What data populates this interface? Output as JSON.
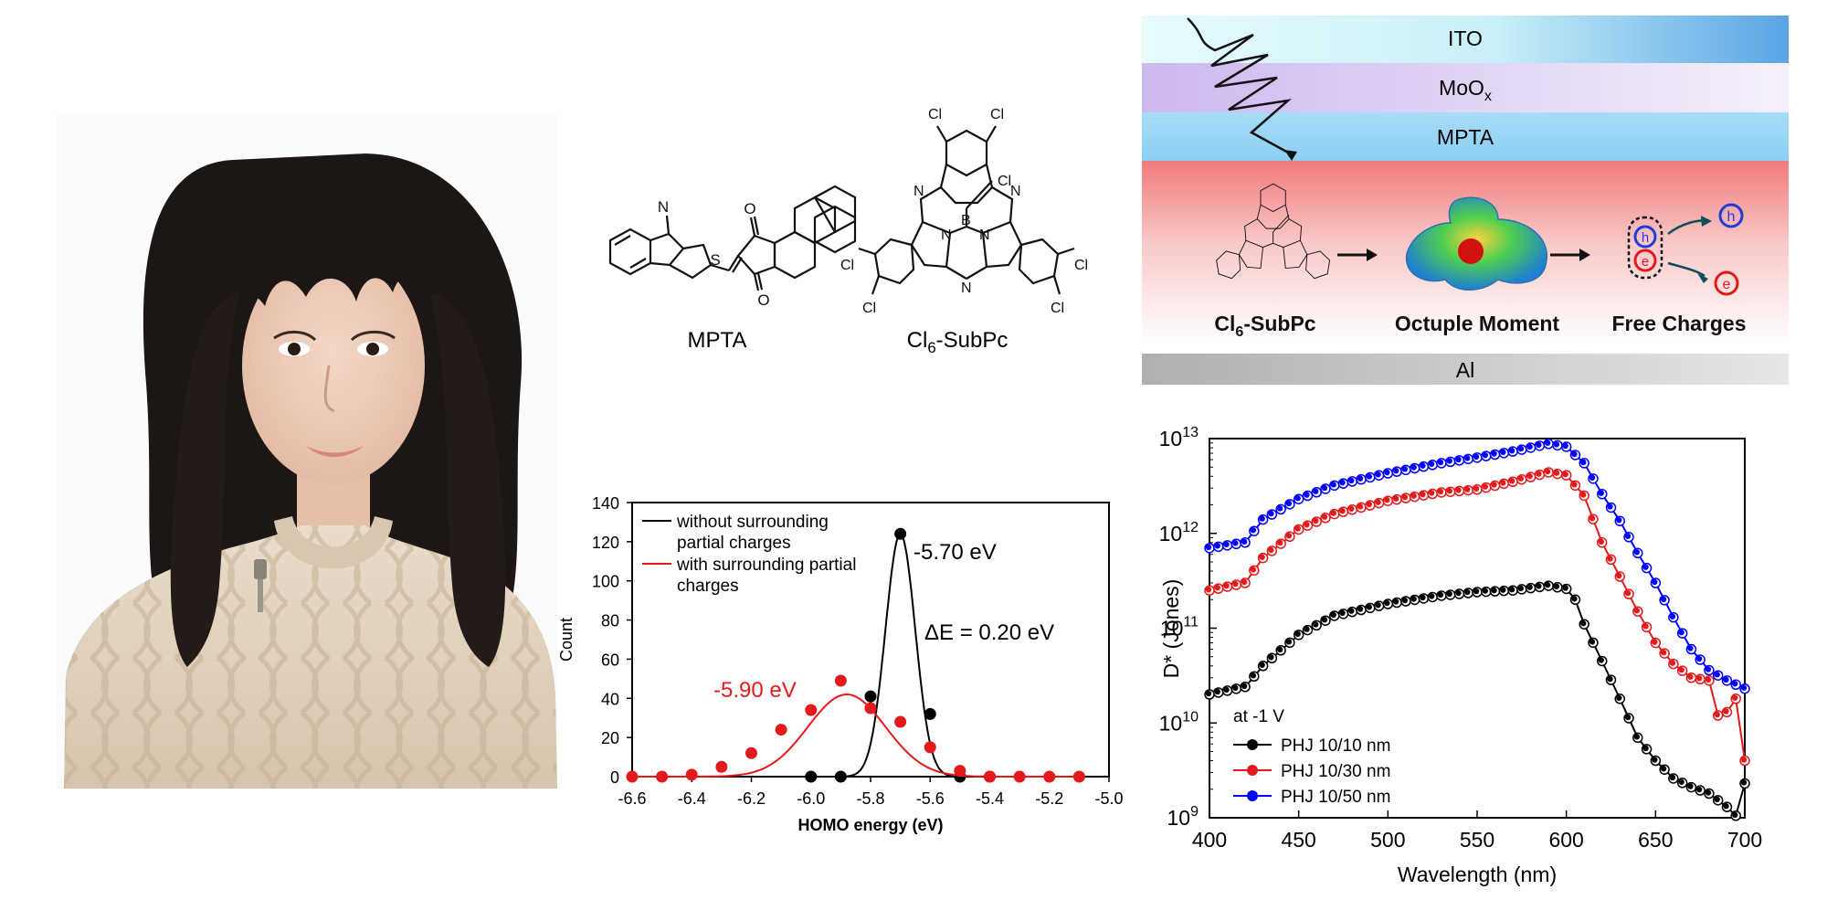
{
  "molecules": {
    "mpta_label": "MPTA",
    "subpc_label_main": "Cl",
    "subpc_label_sub": "6",
    "subpc_label_rest": "-SubPc",
    "atoms": {
      "N": "N",
      "S": "S",
      "O": "O",
      "B": "B",
      "Cl": "Cl"
    }
  },
  "device": {
    "layers": [
      {
        "name": "ITO"
      },
      {
        "name": "MoO",
        "sub": "x"
      },
      {
        "name": "MPTA"
      },
      {
        "name": "Al"
      }
    ],
    "steps": [
      {
        "main": "Cl",
        "sub": "6",
        "rest": "-SubPc"
      },
      {
        "main": "Octuple Moment"
      },
      {
        "main": "Free Charges"
      }
    ],
    "hole_symbol": "h",
    "electron_symbol": "e",
    "colors": {
      "ito_end": "#5aa5e6",
      "moox": "#c9b6ee",
      "mpta": "#8fd4f5",
      "active": "#f08a8a",
      "al": "#b8b8b8"
    }
  },
  "chart_data": [
    {
      "type": "scatter",
      "xlabel": "HOMO energy (eV)",
      "ylabel": "Count",
      "xlim": [
        -6.6,
        -5.0
      ],
      "ylim": [
        0,
        140
      ],
      "xticks": [
        "-6.6",
        "-6.4",
        "-6.2",
        "-6.0",
        "-5.8",
        "-5.6",
        "-5.4",
        "-5.2",
        "-5.0"
      ],
      "yticks": [
        "0",
        "20",
        "40",
        "60",
        "80",
        "100",
        "120",
        "140"
      ],
      "legend_position": "top-left",
      "series": [
        {
          "name": "without surrounding partial charges",
          "legend_lines": [
            "without surrounding",
            "partial charges"
          ],
          "color": "#000000",
          "points": [
            [
              -6.0,
              0
            ],
            [
              -5.9,
              0
            ],
            [
              -5.8,
              41
            ],
            [
              -5.7,
              124
            ],
            [
              -5.6,
              32
            ],
            [
              -5.5,
              0
            ],
            [
              -5.4,
              0
            ]
          ],
          "fit": {
            "mean": -5.7,
            "sigma": 0.05,
            "amp": 124,
            "range": [
              -5.92,
              -5.42
            ]
          }
        },
        {
          "name": "with surrounding partial charges",
          "legend_lines": [
            "with surrounding partial",
            "charges"
          ],
          "color": "#e31a1c",
          "points": [
            [
              -6.6,
              0
            ],
            [
              -6.5,
              0
            ],
            [
              -6.4,
              1
            ],
            [
              -6.3,
              5
            ],
            [
              -6.2,
              12
            ],
            [
              -6.1,
              24
            ],
            [
              -6.0,
              34
            ],
            [
              -5.9,
              49
            ],
            [
              -5.8,
              35
            ],
            [
              -5.7,
              28
            ],
            [
              -5.6,
              15
            ],
            [
              -5.5,
              3
            ],
            [
              -5.4,
              0
            ],
            [
              -5.3,
              0
            ],
            [
              -5.2,
              0
            ],
            [
              -5.1,
              0
            ]
          ],
          "fit": {
            "mean": -5.88,
            "sigma": 0.13,
            "amp": 42,
            "range": [
              -6.6,
              -5.1
            ]
          }
        }
      ],
      "annotations": [
        {
          "text": "-5.70 eV",
          "color": "#000000"
        },
        {
          "text": "ΔE = 0.20 eV",
          "color": "#000000"
        },
        {
          "text": "-5.90 eV",
          "color": "#e31a1c"
        }
      ]
    },
    {
      "type": "line",
      "xlabel": "Wavelength (nm)",
      "ylabel": "D* (Jones)",
      "xlim": [
        400,
        700
      ],
      "ylim": [
        1000000000.0,
        10000000000000.0
      ],
      "y_scale": "log",
      "xticks": [
        "400",
        "450",
        "500",
        "550",
        "600",
        "650",
        "700"
      ],
      "yticks": [
        {
          "base": "10",
          "exp": "9"
        },
        {
          "base": "10",
          "exp": "10"
        },
        {
          "base": "10",
          "exp": "11"
        },
        {
          "base": "10",
          "exp": "12"
        },
        {
          "base": "10",
          "exp": "13"
        }
      ],
      "legend_title": "at -1 V",
      "legend_position": "bottom-left",
      "series": [
        {
          "name": "PHJ 10/10 nm",
          "color": "#000000",
          "points": [
            [
              400,
              20000000000.0
            ],
            [
              420,
              24000000000.0
            ],
            [
              430,
              40000000000.0
            ],
            [
              450,
              85000000000.0
            ],
            [
              470,
              135000000000.0
            ],
            [
              500,
              180000000000.0
            ],
            [
              530,
              220000000000.0
            ],
            [
              550,
              240000000000.0
            ],
            [
              570,
              250000000000.0
            ],
            [
              590,
              280000000000.0
            ],
            [
              600,
              260000000000.0
            ],
            [
              605,
              200000000000.0
            ],
            [
              610,
              110000000000.0
            ],
            [
              620,
              45000000000.0
            ],
            [
              630,
              18000000000.0
            ],
            [
              640,
              7000000000.0
            ],
            [
              650,
              4000000000.0
            ],
            [
              660,
              2600000000.0
            ],
            [
              670,
              2100000000.0
            ],
            [
              680,
              1800000000.0
            ],
            [
              690,
              1300000000.0
            ],
            [
              695,
              1050000000.0
            ],
            [
              700,
              2300000000.0
            ]
          ]
        },
        {
          "name": "PHJ 10/30 nm",
          "color": "#e31a1c",
          "points": [
            [
              400,
              250000000000.0
            ],
            [
              420,
              300000000000.0
            ],
            [
              430,
              550000000000.0
            ],
            [
              450,
              1100000000000.0
            ],
            [
              470,
              1600000000000.0
            ],
            [
              500,
              2200000000000.0
            ],
            [
              530,
              2700000000000.0
            ],
            [
              550,
              2900000000000.0
            ],
            [
              570,
              3500000000000.0
            ],
            [
              590,
              4400000000000.0
            ],
            [
              600,
              4100000000000.0
            ],
            [
              610,
              2500000000000.0
            ],
            [
              620,
              800000000000.0
            ],
            [
              630,
              350000000000.0
            ],
            [
              640,
              150000000000.0
            ],
            [
              650,
              70000000000.0
            ],
            [
              660,
              42000000000.0
            ],
            [
              670,
              30000000000.0
            ],
            [
              680,
              28000000000.0
            ],
            [
              685,
              12000000000.0
            ],
            [
              690,
              13000000000.0
            ],
            [
              695,
              18000000000.0
            ],
            [
              700,
              4000000000.0
            ]
          ]
        },
        {
          "name": "PHJ 10/50 nm",
          "color": "#0000ff",
          "points": [
            [
              400,
              700000000000.0
            ],
            [
              420,
              800000000000.0
            ],
            [
              430,
              1400000000000.0
            ],
            [
              450,
              2300000000000.0
            ],
            [
              470,
              3200000000000.0
            ],
            [
              500,
              4300000000000.0
            ],
            [
              530,
              5500000000000.0
            ],
            [
              550,
              6300000000000.0
            ],
            [
              570,
              7300000000000.0
            ],
            [
              590,
              8800000000000.0
            ],
            [
              600,
              8200000000000.0
            ],
            [
              610,
              5500000000000.0
            ],
            [
              620,
              2600000000000.0
            ],
            [
              630,
              1350000000000.0
            ],
            [
              640,
              620000000000.0
            ],
            [
              650,
              300000000000.0
            ],
            [
              660,
              130000000000.0
            ],
            [
              670,
              60000000000.0
            ],
            [
              680,
              36000000000.0
            ],
            [
              690,
              28000000000.0
            ],
            [
              700,
              23000000000.0
            ]
          ]
        }
      ]
    }
  ]
}
